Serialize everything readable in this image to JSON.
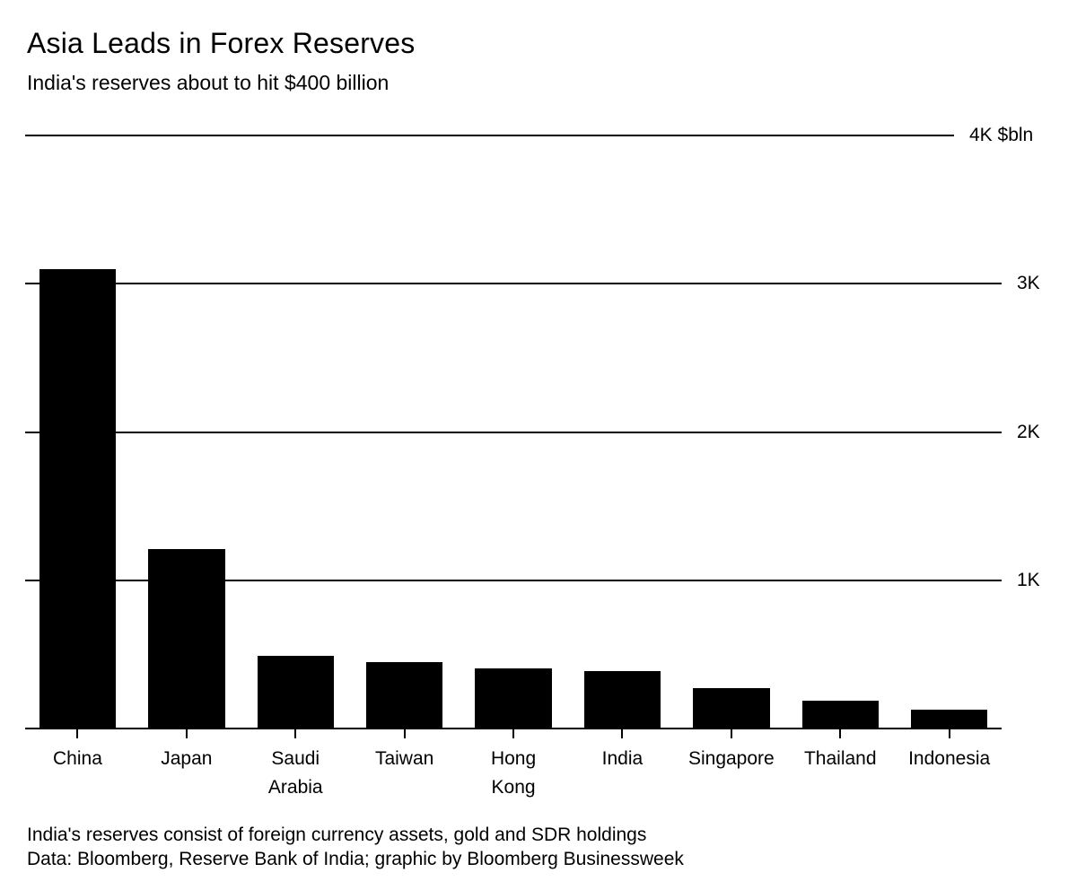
{
  "page": {
    "background_color": "#ffffff",
    "text_color": "#000000"
  },
  "header": {
    "title": "Asia Leads in Forex Reserves",
    "subtitle": "India's reserves about to hit $400 billion"
  },
  "chart_data": {
    "type": "bar",
    "title": "Asia Leads in Forex Reserves",
    "subtitle": "India's reserves about to hit $400 billion",
    "unit": "$bln",
    "categories": [
      "China",
      "Japan",
      "Saudi Arabia",
      "Taiwan",
      "Hong Kong",
      "India",
      "Singapore",
      "Thailand",
      "Indonesia"
    ],
    "category_label_lines": [
      [
        "China"
      ],
      [
        "Japan"
      ],
      [
        "Saudi",
        "Arabia"
      ],
      [
        "Taiwan"
      ],
      [
        "Hong",
        "Kong"
      ],
      [
        "India"
      ],
      [
        "Singapore"
      ],
      [
        "Thailand"
      ],
      [
        "Indonesia"
      ]
    ],
    "values": [
      3100,
      1210,
      490,
      445,
      408,
      390,
      270,
      188,
      126
    ],
    "ylim": [
      0,
      4000
    ],
    "yticks": [
      {
        "label": "4K $bln",
        "value": 4000
      },
      {
        "label": "3K",
        "value": 3000
      },
      {
        "label": "2K",
        "value": 2000
      },
      {
        "label": "1K",
        "value": 1000
      }
    ],
    "grid": true,
    "legend_position": "none",
    "bar_color": "#000000",
    "gridline_color": "#000000"
  },
  "footnotes": [
    "India's reserves consist of foreign currency assets, gold and SDR holdings",
    "Data: Bloomberg, Reserve Bank of India; graphic by Bloomberg Businessweek"
  ]
}
